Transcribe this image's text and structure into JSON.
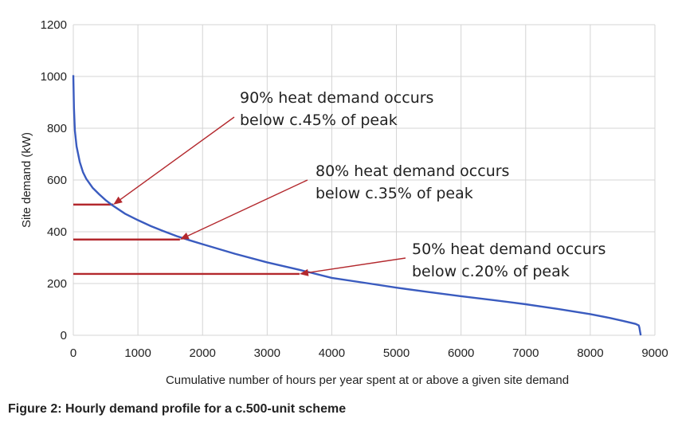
{
  "caption": "Figure 2: Hourly demand profile for a c.500-unit scheme",
  "chart_data": {
    "type": "line",
    "title": "",
    "xlabel": "Cumulative number of hours per year spent at or above a given site demand",
    "ylabel": "Site demand (kW)",
    "xlim": [
      0,
      9000
    ],
    "ylim": [
      0,
      1200
    ],
    "xticks": [
      "0",
      "1000",
      "2000",
      "3000",
      "4000",
      "5000",
      "6000",
      "7000",
      "8000",
      "9000"
    ],
    "yticks": [
      "0",
      "200",
      "400",
      "600",
      "800",
      "1000",
      "1200"
    ],
    "grid": true,
    "colors": {
      "series": "#3a5bbf",
      "annotation": "#b3282d",
      "grid": "#d4d4d4"
    },
    "series": [
      {
        "x": [
          0,
          10,
          25,
          50,
          100,
          150,
          200,
          300,
          400,
          500,
          600,
          800,
          1000,
          1200,
          1400,
          1600,
          1800,
          2000,
          2500,
          3000,
          3500,
          4000,
          4500,
          5000,
          5500,
          6000,
          6500,
          7000,
          7500,
          8000,
          8300,
          8500,
          8700,
          8750,
          8760,
          8770,
          8780
        ],
        "y": [
          1005,
          880,
          790,
          730,
          670,
          630,
          605,
          570,
          545,
          522,
          503,
          470,
          445,
          422,
          402,
          383,
          367,
          352,
          315,
          282,
          253,
          222,
          203,
          184,
          167,
          151,
          136,
          120,
          102,
          82,
          67,
          56,
          44,
          38,
          30,
          15,
          0
        ]
      }
    ],
    "annotations": [
      {
        "text_lines": [
          "90% heat demand occurs",
          "below c.45% of peak"
        ],
        "level_kw": 505,
        "hours": 620
      },
      {
        "text_lines": [
          "80% heat demand occurs",
          "below c.35% of peak"
        ],
        "level_kw": 370,
        "hours": 1650
      },
      {
        "text_lines": [
          "50% heat demand occurs",
          "below c.20% of peak"
        ],
        "level_kw": 237,
        "hours": 3500
      }
    ]
  }
}
